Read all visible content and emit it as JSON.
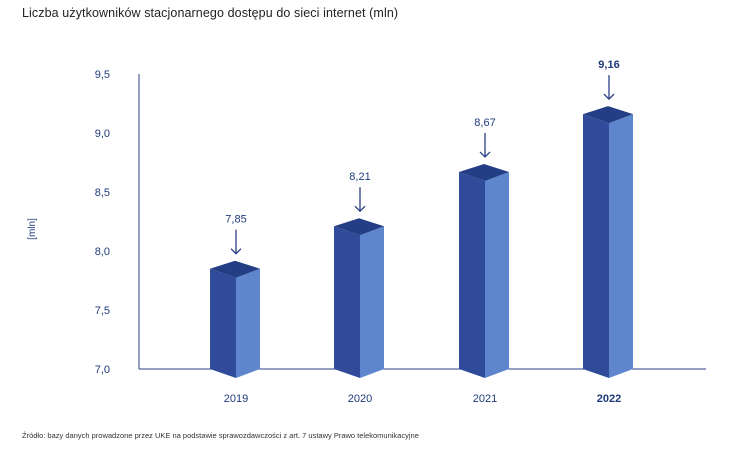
{
  "chart_data": {
    "type": "bar",
    "title": "Liczba użytkowników stacjonarnego dostępu do sieci internet (mln)",
    "ylabel": "[mln]",
    "xlabel": "",
    "categories": [
      "2019",
      "2020",
      "2021",
      "2022"
    ],
    "values": [
      7.85,
      8.21,
      8.67,
      9.16
    ],
    "value_labels": [
      "7,85",
      "8,21",
      "8,67",
      "9,16"
    ],
    "highlighted_category": "2022",
    "y_ticks": [
      "7,0",
      "7,5",
      "8,0",
      "8,5",
      "9,0",
      "9,5"
    ],
    "y_tick_values": [
      7.0,
      7.5,
      8.0,
      8.5,
      9.0,
      9.5
    ],
    "ylim": [
      7.0,
      9.5
    ],
    "grid": false,
    "legend": "none",
    "style": "3d-bars"
  },
  "colors": {
    "bar_front": "#2f4b9a",
    "bar_side": "#5d86cc",
    "bar_top": "#243e86",
    "axis": "#2b3f86",
    "text": "#1e3a7a"
  },
  "source": "Źródło: bazy danych prowadzone przez UKE na podstawie sprawozdawczości z art. 7 ustawy Prawo telekomunikacyjne"
}
